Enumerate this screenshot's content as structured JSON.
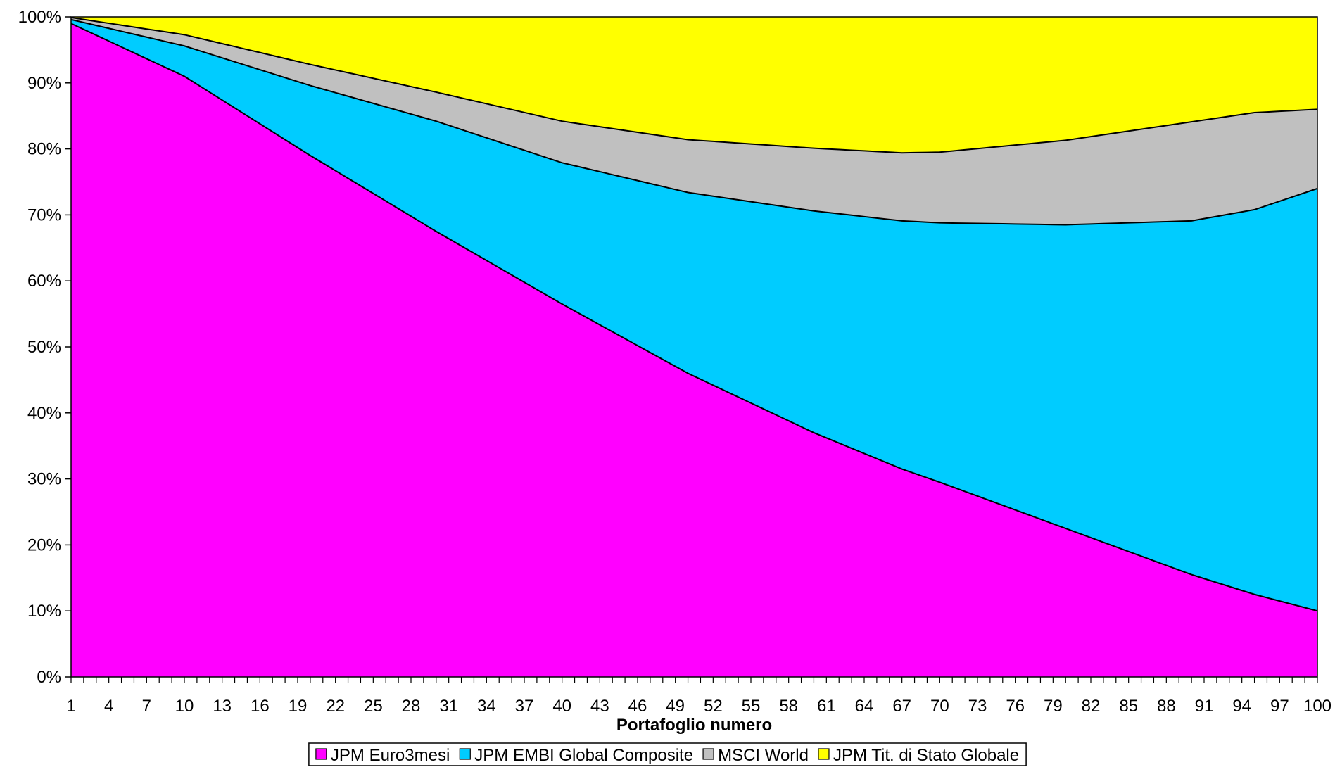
{
  "chart_data": {
    "type": "area",
    "stacked": "percent",
    "title": "",
    "xlabel": "Portafoglio numero",
    "ylabel": "",
    "ylim": [
      0,
      100
    ],
    "y_ticks": [
      "0%",
      "10%",
      "20%",
      "30%",
      "40%",
      "50%",
      "60%",
      "70%",
      "80%",
      "90%",
      "100%"
    ],
    "x_range": [
      1,
      100
    ],
    "x_tick_labels": [
      "1",
      "4",
      "7",
      "10",
      "13",
      "16",
      "19",
      "22",
      "25",
      "28",
      "31",
      "34",
      "37",
      "40",
      "43",
      "46",
      "49",
      "52",
      "55",
      "58",
      "61",
      "64",
      "67",
      "70",
      "73",
      "76",
      "79",
      "82",
      "85",
      "88",
      "91",
      "94",
      "97",
      "100"
    ],
    "legend_position": "bottom",
    "grid": false,
    "x": [
      1,
      10,
      20,
      30,
      40,
      50,
      60,
      67,
      70,
      80,
      90,
      95,
      100
    ],
    "series": [
      {
        "name": "JPM Euro3mesi",
        "color": "#FF00FF",
        "values": [
          99,
          91,
          79,
          67.5,
          56.5,
          46,
          37,
          31.5,
          29.5,
          22.5,
          15.5,
          12.5,
          10
        ]
      },
      {
        "name": "JPM EMBI Global Composite",
        "color": "#00CCFF",
        "values": [
          0.6,
          4.6,
          10.6,
          16.7,
          21.4,
          27.4,
          33.6,
          37.6,
          39.3,
          46,
          53.6,
          58.3,
          64
        ]
      },
      {
        "name": "MSCI World",
        "color": "#C0C0C0",
        "values": [
          0.3,
          1.7,
          3.2,
          4.4,
          6.3,
          8,
          9.5,
          10.3,
          10.7,
          12.8,
          15,
          14.7,
          12
        ]
      },
      {
        "name": "JPM Tit. di Stato Globale",
        "color": "#FFFF00",
        "values": [
          0.1,
          2.7,
          7.2,
          11.4,
          15.8,
          18.6,
          19.9,
          20.6,
          20.5,
          18.7,
          15.9,
          14.5,
          14
        ]
      }
    ]
  }
}
